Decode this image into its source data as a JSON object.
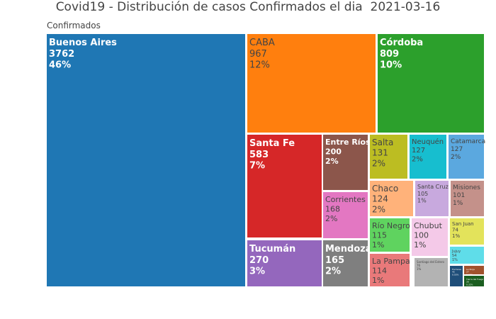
{
  "chart_data": {
    "type": "treemap",
    "title": "Covid19 - Distribución de casos Confirmados el dia  2021-03-16",
    "root_label": "Confirmados",
    "tiles": [
      {
        "name": "Buenos Aires",
        "value": "3762",
        "percent": "46%",
        "color": "#1f77b4",
        "text_color": "#ffffff",
        "bold": true
      },
      {
        "name": "CABA",
        "value": "967",
        "percent": "12%",
        "color": "#ff7f0e",
        "text_color": "#444444",
        "bold": false
      },
      {
        "name": "Córdoba",
        "value": "809",
        "percent": "10%",
        "color": "#2ca02c",
        "text_color": "#ffffff",
        "bold": true
      },
      {
        "name": "Santa Fe",
        "value": "583",
        "percent": "7%",
        "color": "#d62728",
        "text_color": "#ffffff",
        "bold": true
      },
      {
        "name": "Entre Ríos",
        "value": "200",
        "percent": "2%",
        "color": "#8c564b",
        "text_color": "#ffffff",
        "bold": true
      },
      {
        "name": "Corrientes",
        "value": "168",
        "percent": "2%",
        "color": "#e377c2",
        "text_color": "#444444",
        "bold": false
      },
      {
        "name": "Tucumán",
        "value": "270",
        "percent": "3%",
        "color": "#9467bd",
        "text_color": "#ffffff",
        "bold": true
      },
      {
        "name": "Mendoza",
        "value": "165",
        "percent": "2%",
        "color": "#7f7f7f",
        "text_color": "#ffffff",
        "bold": true
      },
      {
        "name": "Salta",
        "value": "131",
        "percent": "2%",
        "color": "#bcbd22",
        "text_color": "#444444",
        "bold": false
      },
      {
        "name": "Neuquén",
        "value": "127",
        "percent": "2%",
        "color": "#17becf",
        "text_color": "#444444",
        "bold": false
      },
      {
        "name": "Catamarca",
        "value": "127",
        "percent": "2%",
        "color": "#5ba8df",
        "text_color": "#444444",
        "bold": false
      },
      {
        "name": "Chaco",
        "value": "124",
        "percent": "2%",
        "color": "#ffb27a",
        "text_color": "#444444",
        "bold": false
      },
      {
        "name": "Santa Cruz",
        "value": "105",
        "percent": "1%",
        "color": "#c8a9de",
        "text_color": "#444444",
        "bold": false
      },
      {
        "name": "Misiones",
        "value": "101",
        "percent": "1%",
        "color": "#c4918a",
        "text_color": "#444444",
        "bold": false
      },
      {
        "name": "Río Negro",
        "value": "115",
        "percent": "1%",
        "color": "#5fd35f",
        "text_color": "#444444",
        "bold": false
      },
      {
        "name": "Chubut",
        "value": "100",
        "percent": "1%",
        "color": "#f4c9e8",
        "text_color": "#444444",
        "bold": false
      },
      {
        "name": "San Juan",
        "value": "74",
        "percent": "1%",
        "color": "#e3e35b",
        "text_color": "#444444",
        "bold": false
      },
      {
        "name": "La Pampa",
        "value": "114",
        "percent": "1%",
        "color": "#e9797a",
        "text_color": "#444444",
        "bold": false
      },
      {
        "name": "Santiago del Estero",
        "value": "76",
        "percent": "1%",
        "color": "#b3b3b3",
        "text_color": "#444444",
        "bold": false
      },
      {
        "name": "Jujuy",
        "value": "54",
        "percent": "1%",
        "color": "#5fdde9",
        "text_color": "#444444",
        "bold": false
      },
      {
        "name": "Formosa",
        "value": "45",
        "percent": "0.55%",
        "color": "#1f4e79",
        "text_color": "#ffffff",
        "bold": false
      },
      {
        "name": "La Rioja",
        "value": "27",
        "percent": "0.33%",
        "color": "#a0522d",
        "text_color": "#ffffff",
        "bold": false
      },
      {
        "name": "Tierra del Fuego",
        "value": "26",
        "percent": "0.32%",
        "color": "#1b5e20",
        "text_color": "#ffffff",
        "bold": false
      }
    ]
  }
}
